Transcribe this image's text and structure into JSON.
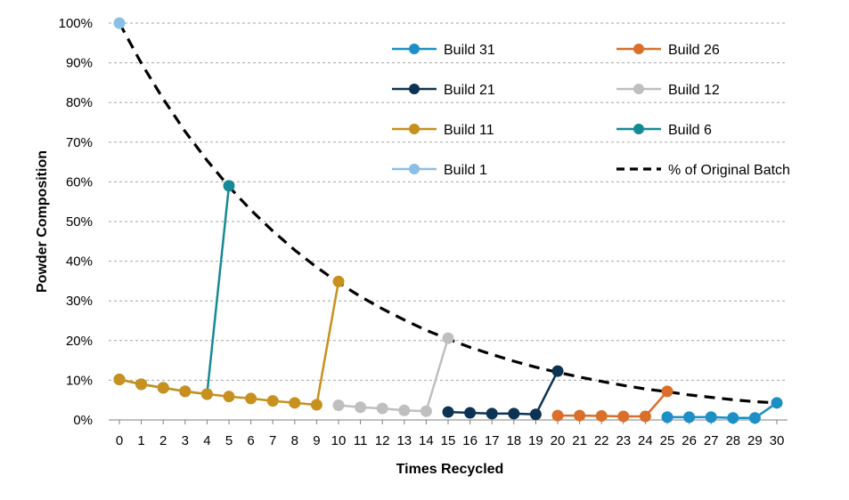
{
  "chart_data": {
    "type": "line",
    "title": "",
    "xlabel": "Times Recycled",
    "ylabel": "Powder Composition",
    "xlim": [
      0,
      30
    ],
    "ylim": [
      0,
      100
    ],
    "x_ticks": [
      "0",
      "1",
      "2",
      "3",
      "4",
      "5",
      "6",
      "7",
      "8",
      "9",
      "10",
      "11",
      "12",
      "13",
      "14",
      "15",
      "16",
      "17",
      "18",
      "19",
      "20",
      "21",
      "22",
      "23",
      "24",
      "25",
      "26",
      "27",
      "28",
      "29",
      "30"
    ],
    "y_ticks": [
      "0%",
      "10%",
      "20%",
      "30%",
      "40%",
      "50%",
      "60%",
      "70%",
      "80%",
      "90%",
      "100%"
    ],
    "grid": "horizontal dashed",
    "legend_placement": "top-right",
    "series": [
      {
        "name": "Build 31",
        "color": "#1b8fc6",
        "marker": "circle",
        "points": [
          [
            25,
            0.7
          ],
          [
            26,
            0.7
          ],
          [
            27,
            0.7
          ],
          [
            28,
            0.5
          ],
          [
            29,
            0.5
          ],
          [
            30,
            4.3
          ]
        ]
      },
      {
        "name": "Build 26",
        "color": "#d96f2a",
        "marker": "circle",
        "points": [
          [
            20,
            1.1
          ],
          [
            21,
            1.1
          ],
          [
            22,
            1.0
          ],
          [
            23,
            0.9
          ],
          [
            24,
            0.9
          ],
          [
            25,
            7.2
          ]
        ]
      },
      {
        "name": "Build 21",
        "color": "#0d3354",
        "marker": "circle",
        "points": [
          [
            15,
            2.0
          ],
          [
            16,
            1.8
          ],
          [
            17,
            1.6
          ],
          [
            18,
            1.6
          ],
          [
            19,
            1.4
          ],
          [
            20,
            12.3
          ]
        ]
      },
      {
        "name": "Build 12",
        "color": "#bfbfbf",
        "marker": "circle",
        "points": [
          [
            10,
            3.7
          ],
          [
            11,
            3.2
          ],
          [
            12,
            2.9
          ],
          [
            13,
            2.4
          ],
          [
            14,
            2.2
          ],
          [
            15,
            20.6
          ]
        ]
      },
      {
        "name": "Build 11",
        "color": "#c8901e",
        "marker": "circle",
        "points": [
          [
            0,
            10.2
          ],
          [
            1,
            9.0
          ],
          [
            2,
            8.1
          ],
          [
            3,
            7.2
          ],
          [
            4,
            6.5
          ],
          [
            5,
            5.9
          ],
          [
            6,
            5.4
          ],
          [
            7,
            4.8
          ],
          [
            8,
            4.3
          ],
          [
            9,
            3.8
          ],
          [
            10,
            34.9
          ]
        ]
      },
      {
        "name": "Build 6",
        "color": "#168a94",
        "marker": "circle",
        "points": [
          [
            0,
            10.2
          ],
          [
            1,
            9.0
          ],
          [
            2,
            8.1
          ],
          [
            3,
            7.2
          ],
          [
            4,
            6.5
          ],
          [
            5,
            59.0
          ]
        ]
      },
      {
        "name": "Build 1",
        "color": "#8cbfe6",
        "marker": "circle",
        "points": [
          [
            0,
            100
          ]
        ]
      },
      {
        "name": "% of Original Batch",
        "color": "#000000",
        "marker": "none",
        "dashed": true,
        "points": [
          [
            0,
            100
          ],
          [
            1,
            89.9
          ],
          [
            2,
            80.9
          ],
          [
            3,
            72.7
          ],
          [
            4,
            65.4
          ],
          [
            5,
            58.8
          ],
          [
            6,
            52.9
          ],
          [
            7,
            47.6
          ],
          [
            8,
            42.8
          ],
          [
            9,
            38.5
          ],
          [
            10,
            34.6
          ],
          [
            11,
            31.1
          ],
          [
            12,
            28.0
          ],
          [
            13,
            25.2
          ],
          [
            14,
            22.6
          ],
          [
            15,
            20.4
          ],
          [
            16,
            18.3
          ],
          [
            17,
            16.5
          ],
          [
            18,
            14.8
          ],
          [
            19,
            13.3
          ],
          [
            20,
            12.0
          ],
          [
            21,
            10.8
          ],
          [
            22,
            9.7
          ],
          [
            23,
            8.7
          ],
          [
            24,
            7.8
          ],
          [
            25,
            7.1
          ],
          [
            26,
            6.3
          ],
          [
            27,
            5.7
          ],
          [
            28,
            5.1
          ],
          [
            29,
            4.6
          ],
          [
            30,
            4.3
          ]
        ]
      }
    ],
    "legend_order": [
      "Build 31",
      "Build 26",
      "Build 21",
      "Build 12",
      "Build 11",
      "Build 6",
      "Build 1",
      "% of Original Batch"
    ]
  }
}
